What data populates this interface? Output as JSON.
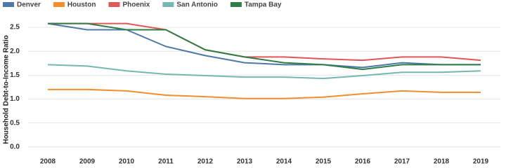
{
  "chart_data": {
    "type": "line",
    "y_label": "Household Debt-to-Income Ratio",
    "categories": [
      "2008",
      "2009",
      "2010",
      "2011",
      "2012",
      "2013",
      "2014",
      "2015",
      "2016",
      "2017",
      "2018",
      "2019"
    ],
    "series": [
      {
        "name": "Denver",
        "color": "#4e79a7",
        "values": [
          2.58,
          2.45,
          2.45,
          2.1,
          1.91,
          1.76,
          1.72,
          1.72,
          1.66,
          1.76,
          1.72,
          1.72
        ]
      },
      {
        "name": "Houston",
        "color": "#f28e2b",
        "values": [
          1.2,
          1.2,
          1.17,
          1.08,
          1.05,
          1.01,
          1.01,
          1.04,
          1.11,
          1.17,
          1.14,
          1.14
        ]
      },
      {
        "name": "Phoenix",
        "color": "#e15759",
        "values": [
          2.58,
          2.58,
          2.58,
          2.45,
          2.03,
          1.88,
          1.88,
          1.84,
          1.81,
          1.88,
          1.88,
          1.81
        ]
      },
      {
        "name": "San Antonio",
        "color": "#76b7b2",
        "values": [
          1.72,
          1.69,
          1.59,
          1.52,
          1.49,
          1.46,
          1.46,
          1.43,
          1.49,
          1.56,
          1.56,
          1.59
        ]
      },
      {
        "name": "Tampa Bay",
        "color": "#2f7d47",
        "values": [
          2.58,
          2.58,
          2.45,
          2.45,
          2.03,
          1.88,
          1.76,
          1.72,
          1.62,
          1.72,
          1.72,
          1.72
        ]
      }
    ],
    "ylim": [
      -0.15,
      2.75
    ],
    "yticks": [
      {
        "value": 0,
        "label": "0.0"
      },
      0.5,
      {
        "value": 1,
        "label": "1.0"
      },
      1.5,
      {
        "value": 2,
        "label": "2.0"
      },
      2.5
    ],
    "grid": true
  }
}
